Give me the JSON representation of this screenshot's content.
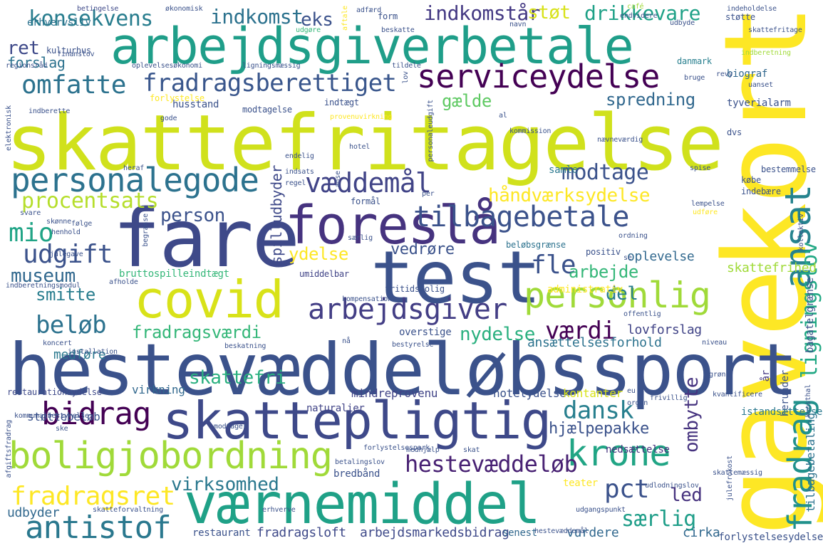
{
  "colors": {
    "background": "#ffffff",
    "palette": [
      "#440154",
      "#46327e",
      "#365c8d",
      "#277f8e",
      "#1fa187",
      "#4ac16d",
      "#a0da39",
      "#fde725"
    ]
  },
  "words": [
    {
      "text": "skattefritagelse",
      "color": "#d0e11c"
    },
    {
      "text": "gavekort",
      "color": "#fde725"
    },
    {
      "text": "hestevæddeløbssport",
      "color": "#3b528b"
    },
    {
      "text": "fare",
      "color": "#3e4989"
    },
    {
      "text": "test",
      "color": "#3b528b"
    },
    {
      "text": "arbejdsgiverbetale",
      "color": "#1f9e89"
    },
    {
      "text": "værnemiddel",
      "color": "#1fa187"
    },
    {
      "text": "skattepligtig",
      "color": "#3e4989"
    },
    {
      "text": "covid",
      "color": "#d8e219"
    },
    {
      "text": "foreslå",
      "color": "#46337f"
    },
    {
      "text": "boligjobordning",
      "color": "#a0da39"
    },
    {
      "text": "serviceydelse",
      "color": "#440154"
    },
    {
      "text": "personalegode",
      "color": "#2c728e"
    },
    {
      "text": "personlig",
      "color": "#a0da39"
    },
    {
      "text": "krone",
      "color": "#21a585"
    },
    {
      "text": "arbejdsgiver",
      "color": "#433e85"
    },
    {
      "text": "tilbagebetale",
      "color": "#3b528b"
    },
    {
      "text": "antistof",
      "color": "#2a788e"
    },
    {
      "text": "fradragsberettiget",
      "color": "#39568c"
    },
    {
      "text": "bidrag",
      "color": "#440154"
    },
    {
      "text": "omfatte",
      "color": "#2c728e"
    },
    {
      "text": "ansat",
      "color": "#25838e"
    },
    {
      "text": "væddemål",
      "color": "#414487"
    },
    {
      "text": "fradragsret",
      "color": "#fde725"
    },
    {
      "text": "hestevæddeløb",
      "color": "#482173"
    },
    {
      "text": "fradrag",
      "color": "#21918c"
    },
    {
      "text": "konsekvens",
      "color": "#287d8e"
    },
    {
      "text": "udgift",
      "color": "#3b528b"
    },
    {
      "text": "beløb",
      "color": "#2c728e"
    },
    {
      "text": "pct",
      "color": "#3b528b"
    },
    {
      "text": "dansk",
      "color": "#277f8e"
    },
    {
      "text": "modtage",
      "color": "#3b528b"
    },
    {
      "text": "fle",
      "color": "#3b528b"
    },
    {
      "text": "mio",
      "color": "#20a486"
    },
    {
      "text": "procentsats",
      "color": "#b5de2b"
    },
    {
      "text": "lignigslov",
      "color": "#22a884"
    },
    {
      "text": "ligningslov",
      "color": "#22a884"
    },
    {
      "text": "indkomstår",
      "color": "#443983"
    },
    {
      "text": "drikkevare",
      "color": "#1fa187"
    },
    {
      "text": "indkomst",
      "color": "#2c728e"
    },
    {
      "text": "værdi",
      "color": "#440154"
    },
    {
      "text": "spredning",
      "color": "#31688e"
    },
    {
      "text": "virksomhed",
      "color": "#2a788e"
    },
    {
      "text": "særlig",
      "color": "#1f9e89"
    },
    {
      "text": "ombytte",
      "color": "#46337f"
    },
    {
      "text": "fradragsværdi",
      "color": "#35b779"
    },
    {
      "text": "eks",
      "color": "#3b528b"
    },
    {
      "text": "støt",
      "color": "#d8e219"
    },
    {
      "text": "gælde",
      "color": "#5ec962"
    },
    {
      "text": "ret",
      "color": "#3e4989"
    },
    {
      "text": "person",
      "color": "#3b528b"
    },
    {
      "text": "håndværksydelse",
      "color": "#fde725"
    },
    {
      "text": "museum",
      "color": "#31688e"
    },
    {
      "text": "smitte",
      "color": "#287d8e"
    },
    {
      "text": "arbejde",
      "color": "#35b779"
    },
    {
      "text": "nydelse",
      "color": "#2ab07f"
    },
    {
      "text": "del",
      "color": "#287d8e"
    },
    {
      "text": "led",
      "color": "#46327e"
    },
    {
      "text": "skattefri",
      "color": "#2ab07f"
    },
    {
      "text": "ydelse",
      "color": "#fde725"
    },
    {
      "text": "vedrøre",
      "color": "#3b528b"
    },
    {
      "text": "spilludbyder",
      "color": "#3e4989"
    },
    {
      "text": "hjælpepakke",
      "color": "#3b528b"
    },
    {
      "text": "forslag",
      "color": "#2c728e"
    },
    {
      "text": "udbyder",
      "color": "#31688e"
    },
    {
      "text": "fradragsloft",
      "color": "#3e4989"
    },
    {
      "text": "arbejdsmarkedsbidrag",
      "color": "#3e4989"
    },
    {
      "text": "vurdere",
      "color": "#31688e"
    },
    {
      "text": "cirka",
      "color": "#31688e"
    },
    {
      "text": "medføre",
      "color": "#2a788e"
    },
    {
      "text": "lovforslag",
      "color": "#414487"
    },
    {
      "text": "ansættelsesforhold",
      "color": "#2c728e"
    },
    {
      "text": "oplevelse",
      "color": "#31688e"
    },
    {
      "text": "skattefrihed",
      "color": "#a0da39"
    },
    {
      "text": "tilbagebetaling",
      "color": "#2c728e"
    },
    {
      "text": "bagatelgrænse",
      "color": "#3b528b"
    },
    {
      "text": "hotelydelse",
      "color": "#3b528b"
    },
    {
      "text": "mindreprovenu",
      "color": "#414487"
    },
    {
      "text": "virkning",
      "color": "#31688e"
    },
    {
      "text": "kontanter",
      "color": "#d8e219"
    },
    {
      "text": "nedsættelse",
      "color": "#46327e"
    },
    {
      "text": "herunder",
      "color": "#3b528b"
    },
    {
      "text": "år",
      "color": "#443983"
    },
    {
      "text": "biograf",
      "color": "#31688e"
    },
    {
      "text": "tyverialarm",
      "color": "#3b528b"
    },
    {
      "text": "husstand",
      "color": "#3b528b"
    },
    {
      "text": "samle",
      "color": "#2a788e"
    },
    {
      "text": "erhvervsliv",
      "color": "#2c728e"
    },
    {
      "text": "bruttospilleindtægt",
      "color": "#35b779"
    },
    {
      "text": "støttebeløb",
      "color": "#3b528b"
    },
    {
      "text": "teater",
      "color": "#fde725"
    },
    {
      "text": "restaurant",
      "color": "#3b528b"
    },
    {
      "text": "senest",
      "color": "#31688e"
    },
    {
      "text": "forlystelsesydelse",
      "color": "#3b528b"
    },
    {
      "text": "istandsættelse",
      "color": "#2a788e"
    },
    {
      "text": "restaurationsydelse",
      "color": "#3e4989"
    },
    {
      "text": "naturalier",
      "color": "#414487"
    },
    {
      "text": "bredbånd",
      "color": "#3b528b"
    },
    {
      "text": "administrativ",
      "color": "#fde725"
    },
    {
      "text": "overstige",
      "color": "#3b528b"
    },
    {
      "text": "beløbsgrænse",
      "color": "#2c728e"
    },
    {
      "text": "positiv",
      "color": "#3b528b"
    },
    {
      "text": "fritidsbolig",
      "color": "#3b528b"
    },
    {
      "text": "umiddelbar",
      "color": "#414487"
    },
    {
      "text": "kulturhus",
      "color": "#3b528b"
    },
    {
      "text": "betingelse",
      "color": "#3e4989"
    },
    {
      "text": "økonomisk",
      "color": "#3b528b"
    },
    {
      "text": "udgøre",
      "color": "#35b779"
    },
    {
      "text": "beskatte",
      "color": "#3b528b"
    },
    {
      "text": "form",
      "color": "#3b528b"
    },
    {
      "text": "danmark",
      "color": "#277f8e"
    },
    {
      "text": "indberetning",
      "color": "#a0da39"
    },
    {
      "text": "modtagelse",
      "color": "#3b528b"
    },
    {
      "text": "indtægt",
      "color": "#3b528b"
    },
    {
      "text": "forlystelse",
      "color": "#fde725"
    },
    {
      "text": "gode",
      "color": "#3b528b"
    },
    {
      "text": "oplevelsesøkonomi",
      "color": "#3b528b"
    },
    {
      "text": "ligningsmæssig",
      "color": "#3b528b"
    },
    {
      "text": "tildele",
      "color": "#3b528b"
    },
    {
      "text": "regionsråd",
      "color": "#3b528b"
    },
    {
      "text": "finanslov",
      "color": "#3b528b"
    },
    {
      "text": "elektronisk",
      "color": "#3b528b"
    },
    {
      "text": "indberette",
      "color": "#3b528b"
    },
    {
      "text": "støtte",
      "color": "#3b528b"
    },
    {
      "text": "endvidere",
      "color": "#3b528b"
    },
    {
      "text": "udbyde",
      "color": "#3b528b"
    },
    {
      "text": "navn",
      "color": "#3b528b"
    },
    {
      "text": "indeholdelse",
      "color": "#3b528b"
    },
    {
      "text": "skattefritage",
      "color": "#3b528b"
    },
    {
      "text": "café",
      "color": "#a0da39"
    },
    {
      "text": "adfærd",
      "color": "#3b528b"
    },
    {
      "text": "aftale",
      "color": "#fde725"
    },
    {
      "text": "uanset",
      "color": "#3b528b"
    },
    {
      "text": "bruge",
      "color": "#3b528b"
    },
    {
      "text": "revy",
      "color": "#3b528b"
    },
    {
      "text": "al",
      "color": "#3b528b"
    },
    {
      "text": "kommission",
      "color": "#3b528b"
    },
    {
      "text": "provenuvirkning",
      "color": "#fde725"
    },
    {
      "text": "personaleudgift",
      "color": "#3b528b"
    },
    {
      "text": "lov",
      "color": "#3b528b"
    },
    {
      "text": "dvs",
      "color": "#3b528b"
    },
    {
      "text": "nævneværdig",
      "color": "#3b528b"
    },
    {
      "text": "hotel",
      "color": "#3b528b"
    },
    {
      "text": "endelig",
      "color": "#3b528b"
    },
    {
      "text": "heraf",
      "color": "#3b528b"
    },
    {
      "text": "indsats",
      "color": "#3b528b"
    },
    {
      "text": "bestemmelse",
      "color": "#3b528b"
    },
    {
      "text": "spise",
      "color": "#3b528b"
    },
    {
      "text": "købe",
      "color": "#3b528b"
    },
    {
      "text": "indebære",
      "color": "#3b528b"
    },
    {
      "text": "regel",
      "color": "#3b528b"
    },
    {
      "text": "anse",
      "color": "#3b528b"
    },
    {
      "text": "per",
      "color": "#3b528b"
    },
    {
      "text": "formål",
      "color": "#3b528b"
    },
    {
      "text": "lempelse",
      "color": "#3b528b"
    },
    {
      "text": "udføre",
      "color": "#fde725"
    },
    {
      "text": "svare",
      "color": "#3b528b"
    },
    {
      "text": "skønne",
      "color": "#3b528b"
    },
    {
      "text": "følge",
      "color": "#3b528b"
    },
    {
      "text": "begrænse",
      "color": "#3b528b"
    },
    {
      "text": "henhold",
      "color": "#3b528b"
    },
    {
      "text": "ordning",
      "color": "#3b528b"
    },
    {
      "text": "julegave",
      "color": "#3b528b"
    },
    {
      "text": "særlig",
      "color": "#3b528b"
    },
    {
      "text": "se",
      "color": "#3b528b"
    },
    {
      "text": "kollektiv",
      "color": "#3b528b"
    },
    {
      "text": "indberetningsmodul",
      "color": "#3b528b"
    },
    {
      "text": "afholde",
      "color": "#3b528b"
    },
    {
      "text": "offentlig",
      "color": "#3b528b"
    },
    {
      "text": "kompensation",
      "color": "#3b528b"
    },
    {
      "text": "koncert",
      "color": "#3b528b"
    },
    {
      "text": "installation",
      "color": "#3b528b"
    },
    {
      "text": "beskatning",
      "color": "#3b528b"
    },
    {
      "text": "nå",
      "color": "#3b528b"
    },
    {
      "text": "bestyrelse",
      "color": "#3b528b"
    },
    {
      "text": "niveau",
      "color": "#3b528b"
    },
    {
      "text": "grøn",
      "color": "#3b528b"
    },
    {
      "text": "eu",
      "color": "#3b528b"
    },
    {
      "text": "organ",
      "color": "#3b528b"
    },
    {
      "text": "frivillig",
      "color": "#3b528b"
    },
    {
      "text": "kvantificere",
      "color": "#3b528b"
    },
    {
      "text": "kunsthal",
      "color": "#3b528b"
    },
    {
      "text": "afgiftsfradrag",
      "color": "#3b528b"
    },
    {
      "text": "kommunalbestyrelse",
      "color": "#3b528b"
    },
    {
      "text": "ske",
      "color": "#3b528b"
    },
    {
      "text": "modtager",
      "color": "#3b528b"
    },
    {
      "text": "forlystelsespark",
      "color": "#3b528b"
    },
    {
      "text": "betalingslov",
      "color": "#3b528b"
    },
    {
      "text": "medhjælp",
      "color": "#3b528b"
    },
    {
      "text": "skat",
      "color": "#3b528b"
    },
    {
      "text": "skattemæssig",
      "color": "#3b528b"
    },
    {
      "text": "julefrokost",
      "color": "#3b528b"
    },
    {
      "text": "udlodningslov",
      "color": "#3b528b"
    },
    {
      "text": "udgangspunkt",
      "color": "#3b528b"
    },
    {
      "text": "erhverve",
      "color": "#3b528b"
    },
    {
      "text": "skatteforvaltning",
      "color": "#3b528b"
    },
    {
      "text": "hestevæddemål",
      "color": "#3b528b"
    },
    {
      "text": "hav",
      "color": "#3b528b"
    }
  ]
}
